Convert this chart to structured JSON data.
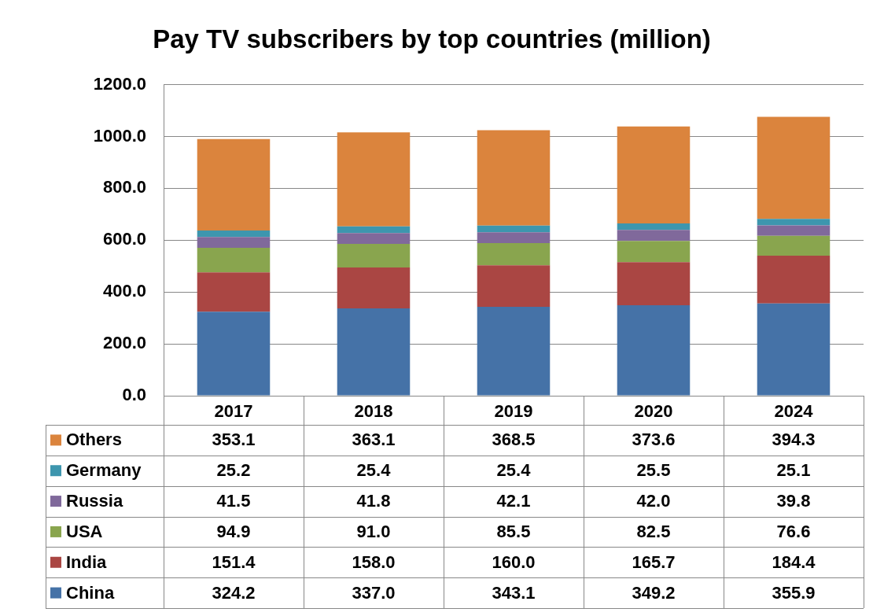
{
  "chart_data": {
    "type": "bar",
    "title": "Pay TV subscribers by top countries (million)",
    "stacked": true,
    "categories": [
      "2017",
      "2018",
      "2019",
      "2020",
      "2024"
    ],
    "ylim": [
      0,
      1200
    ],
    "yticks": [
      {
        "value": 0,
        "label": "0.0"
      },
      {
        "value": 200,
        "label": "200.0"
      },
      {
        "value": 400,
        "label": "400.0"
      },
      {
        "value": 600,
        "label": "600.0"
      },
      {
        "value": 800,
        "label": "800.0"
      },
      {
        "value": 1000,
        "label": "1000.0"
      },
      {
        "value": 1200,
        "label": "1200.0"
      }
    ],
    "grid": "y",
    "legend": "bottom",
    "series": [
      {
        "name": "China",
        "color": "#4572a7",
        "values": [
          324.2,
          337.0,
          343.1,
          349.2,
          355.9
        ],
        "value_labels": [
          "324.2",
          "337.0",
          "343.1",
          "349.2",
          "355.9"
        ]
      },
      {
        "name": "India",
        "color": "#aa4643",
        "values": [
          151.4,
          158.0,
          160.0,
          165.7,
          184.4
        ],
        "value_labels": [
          "151.4",
          "158.0",
          "160.0",
          "165.7",
          "184.4"
        ]
      },
      {
        "name": "USA",
        "color": "#89a54e",
        "values": [
          94.9,
          91.0,
          85.5,
          82.5,
          76.6
        ],
        "value_labels": [
          "94.9",
          "91.0",
          "85.5",
          "82.5",
          "76.6"
        ]
      },
      {
        "name": "Russia",
        "color": "#80699b",
        "values": [
          41.5,
          41.8,
          42.1,
          42.0,
          39.8
        ],
        "value_labels": [
          "41.5",
          "41.8",
          "42.1",
          "42.0",
          "39.8"
        ]
      },
      {
        "name": "Germany",
        "color": "#3d96ae",
        "values": [
          25.2,
          25.4,
          25.4,
          25.5,
          25.1
        ],
        "value_labels": [
          "25.2",
          "25.4",
          "25.4",
          "25.5",
          "25.1"
        ]
      },
      {
        "name": "Others",
        "color": "#db843d",
        "values": [
          353.1,
          363.1,
          368.5,
          373.6,
          394.3
        ],
        "value_labels": [
          "353.1",
          "363.1",
          "368.5",
          "373.6",
          "394.3"
        ]
      }
    ]
  }
}
